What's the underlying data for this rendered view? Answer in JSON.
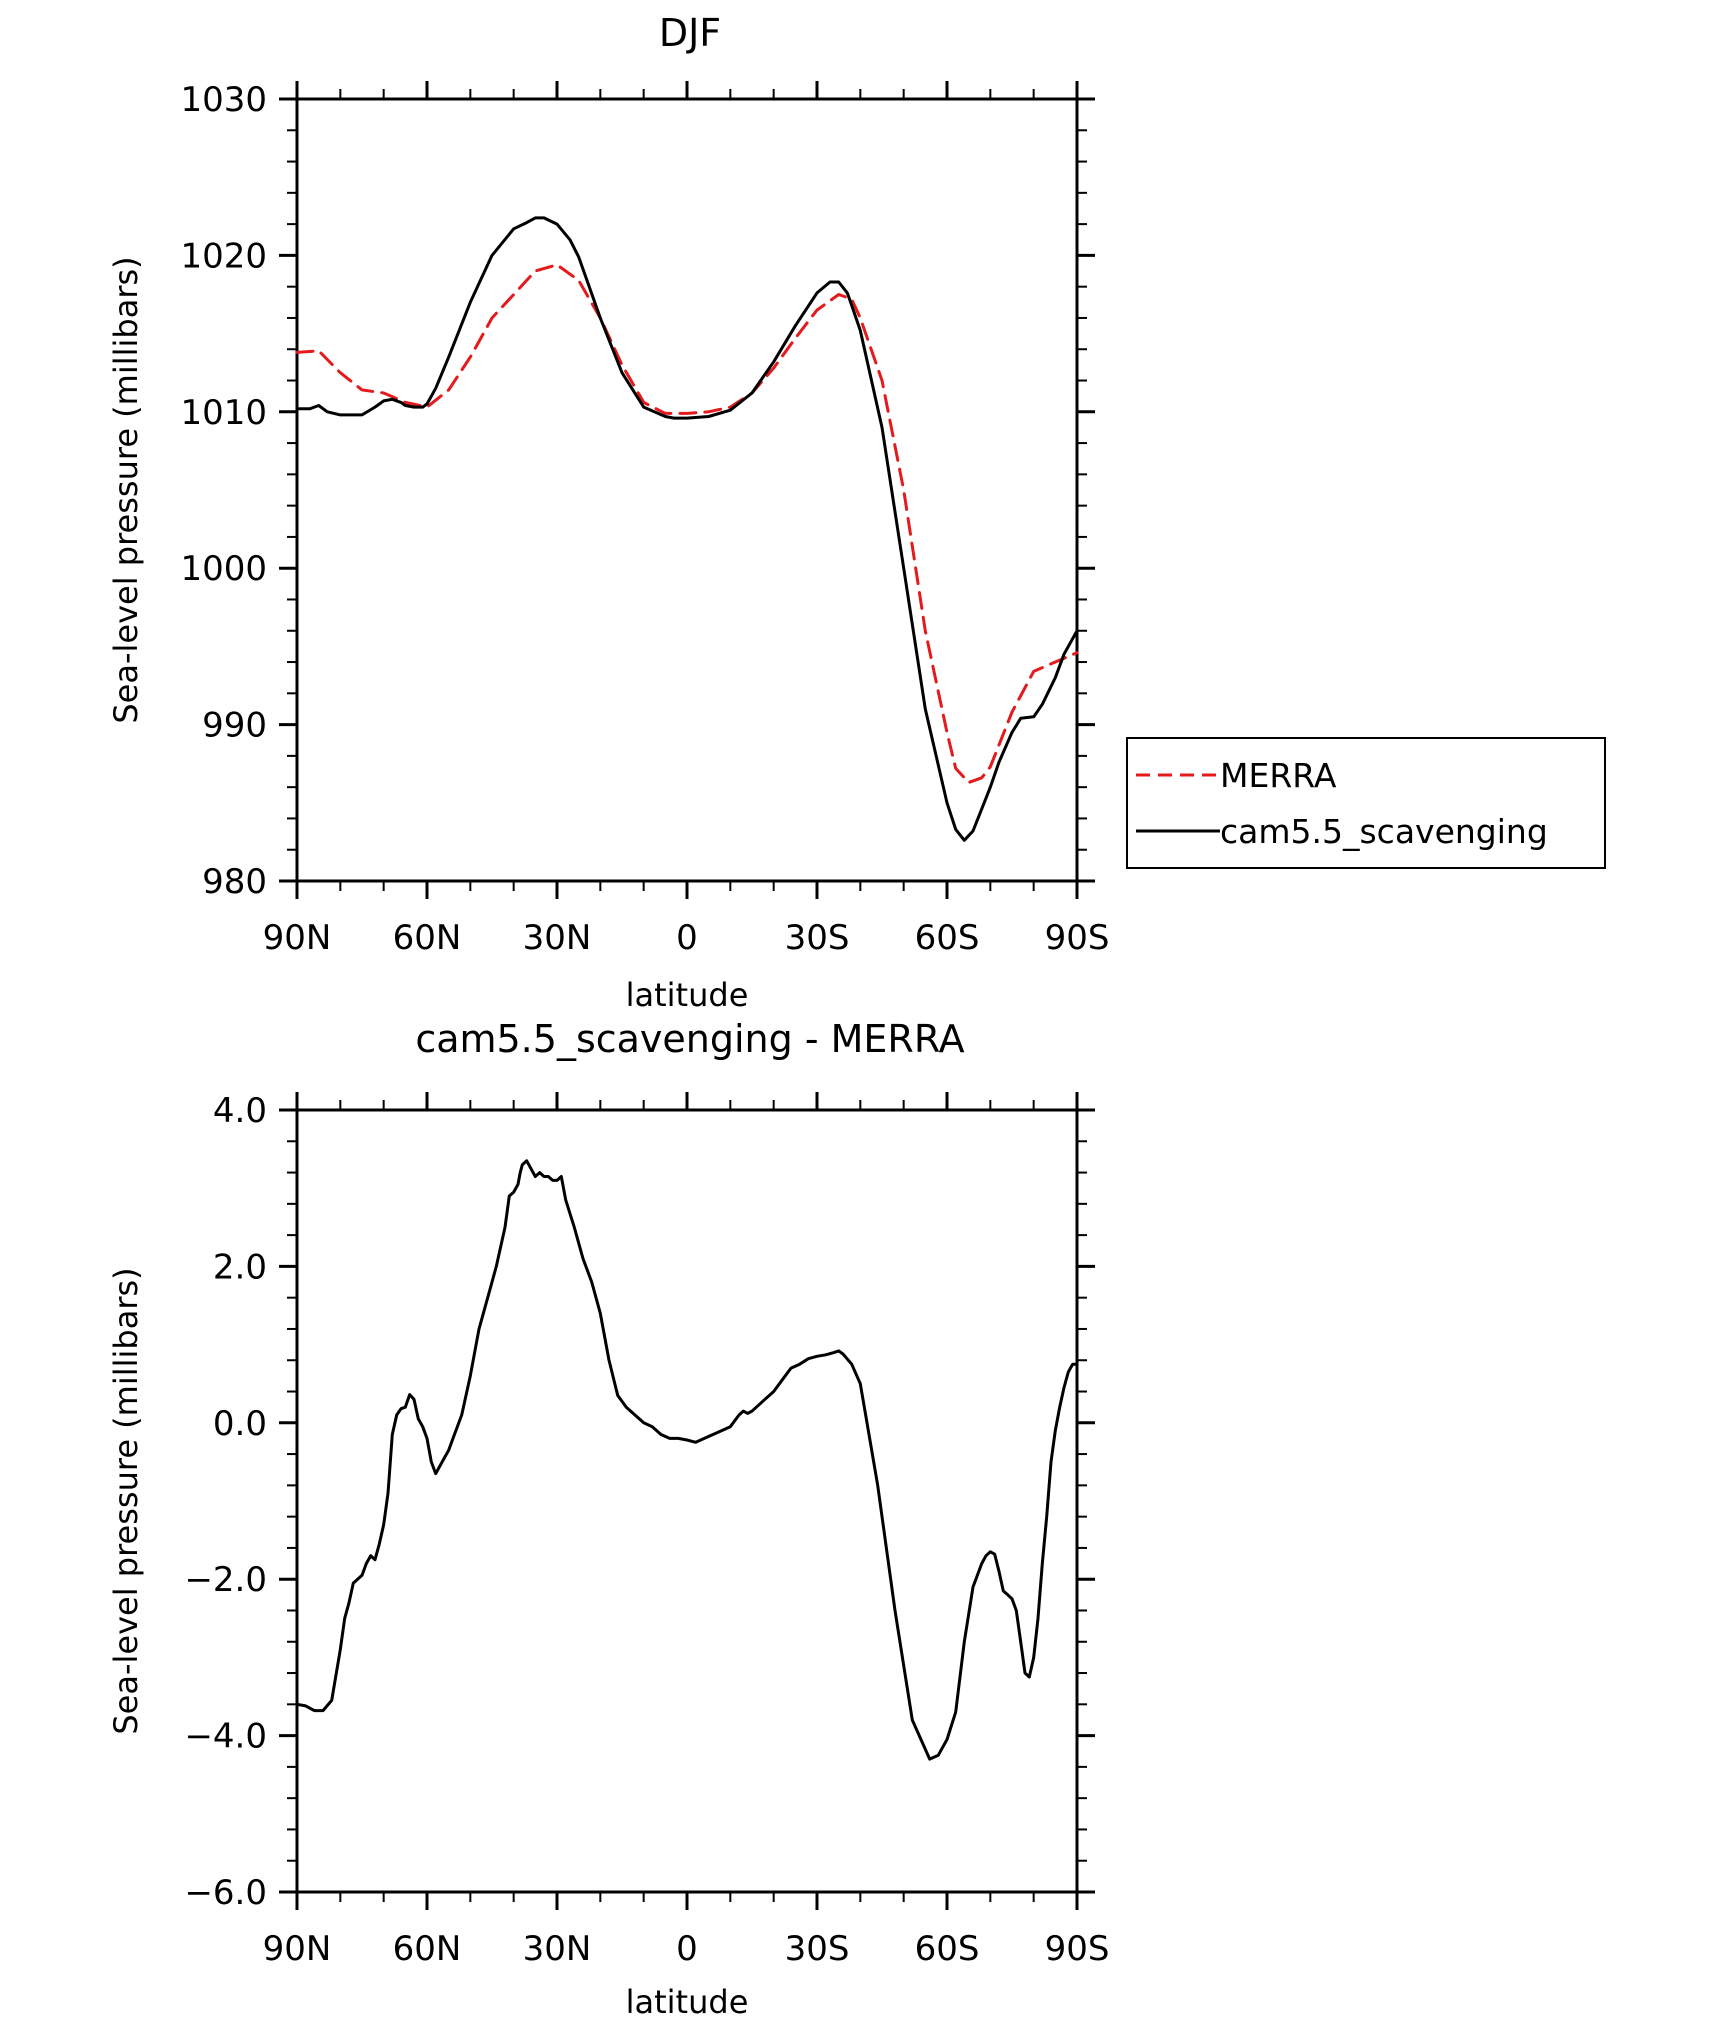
{
  "chart_data": [
    {
      "type": "line",
      "title": "DJF",
      "xlabel": "latitude",
      "ylabel": "Sea-level pressure (millibars)",
      "x_ticks": [
        "90N",
        "60N",
        "30N",
        "0",
        "30S",
        "60S",
        "90S"
      ],
      "y_ticks": [
        "980",
        "990",
        "1000",
        "1010",
        "1020",
        "1030"
      ],
      "ylim": [
        980,
        1030
      ],
      "xlim": [
        90,
        -90
      ],
      "legend_position": "right",
      "series": [
        {
          "name": "MERRA",
          "color": "#e41a1c",
          "dash": "dashed",
          "x": [
            90,
            85,
            80,
            75,
            70,
            65,
            60,
            55,
            50,
            45,
            40,
            35,
            30,
            25,
            20,
            15,
            10,
            5,
            0,
            -5,
            -10,
            -15,
            -20,
            -25,
            -30,
            -35,
            -38,
            -40,
            -45,
            -50,
            -55,
            -60,
            -62,
            -65,
            -68,
            -70,
            -75,
            -80,
            -85,
            -90
          ],
          "y": [
            1013.8,
            1013.9,
            1012.5,
            1011.4,
            1011.2,
            1010.6,
            1010.3,
            1011.4,
            1013.5,
            1016,
            1017.5,
            1019,
            1019.4,
            1018.4,
            1016,
            1013,
            1010.6,
            1009.9,
            1009.9,
            1010,
            1010.3,
            1011.2,
            1012.8,
            1014.7,
            1016.5,
            1017.5,
            1017.2,
            1016,
            1012,
            1005,
            996,
            989.5,
            987.2,
            986.3,
            986.6,
            987.3,
            990.8,
            993.4,
            994,
            994.6
          ]
        },
        {
          "name": "cam5.5_scavenging",
          "color": "#000000",
          "dash": "solid",
          "x": [
            90,
            87,
            85,
            83,
            80,
            75,
            72,
            70,
            68,
            66,
            65,
            63,
            61,
            60,
            58,
            55,
            50,
            45,
            40,
            37,
            35,
            33,
            30,
            27,
            25,
            20,
            15,
            10,
            5,
            3,
            0,
            -5,
            -10,
            -15,
            -20,
            -25,
            -30,
            -33,
            -35,
            -37,
            -38,
            -40,
            -45,
            -50,
            -55,
            -60,
            -62,
            -64,
            -66,
            -68,
            -70,
            -72,
            -75,
            -77,
            -80,
            -82,
            -85,
            -87,
            -90
          ],
          "y": [
            1010.2,
            1010.2,
            1010.4,
            1010,
            1009.8,
            1009.8,
            1010.3,
            1010.7,
            1010.8,
            1010.6,
            1010.4,
            1010.3,
            1010.3,
            1010.5,
            1011.5,
            1013.5,
            1017,
            1020,
            1021.7,
            1022.1,
            1022.4,
            1022.4,
            1022,
            1021,
            1019.9,
            1016,
            1012.5,
            1010.3,
            1009.7,
            1009.6,
            1009.6,
            1009.7,
            1010.1,
            1011.2,
            1013.2,
            1015.5,
            1017.6,
            1018.3,
            1018.3,
            1017.6,
            1016.8,
            1015.2,
            1009,
            1000,
            991,
            985,
            983.3,
            982.6,
            983.2,
            984.6,
            986,
            987.6,
            989.5,
            990.4,
            990.5,
            991.3,
            993,
            994.5,
            996
          ]
        }
      ]
    },
    {
      "type": "line",
      "title": "cam5.5_scavenging - MERRA",
      "xlabel": "latitude",
      "ylabel": "Sea-level pressure (millibars)",
      "x_ticks": [
        "90N",
        "60N",
        "30N",
        "0",
        "30S",
        "60S",
        "90S"
      ],
      "y_ticks": [
        "−6.0",
        "−4.0",
        "−2.0",
        "0.0",
        "2.0",
        "4.0"
      ],
      "ylim": [
        -6,
        4
      ],
      "xlim": [
        90,
        -90
      ],
      "series": [
        {
          "color": "#000000",
          "x": [
            90,
            88,
            86,
            84,
            82,
            80,
            79,
            78,
            77,
            75,
            74,
            73,
            72,
            71,
            70,
            69,
            68,
            67,
            66,
            65,
            64,
            63,
            62,
            61,
            60,
            59,
            58,
            57,
            56,
            55,
            54,
            52,
            50,
            48,
            46,
            44,
            42,
            41,
            40,
            39,
            38.5,
            38,
            37,
            36,
            35,
            34,
            33,
            32,
            31,
            30,
            29,
            28,
            26,
            24,
            22,
            20,
            18,
            16,
            14,
            12,
            10,
            8,
            6,
            4,
            2,
            0,
            -2,
            -4,
            -6,
            -8,
            -10,
            -12,
            -13,
            -14,
            -15,
            -16,
            -18,
            -20,
            -22,
            -24,
            -26,
            -28,
            -30,
            -32,
            -34,
            -35,
            -36,
            -38,
            -40,
            -44,
            -48,
            -52,
            -56,
            -58,
            -60,
            -62,
            -64,
            -66,
            -68,
            -69,
            -70,
            -71,
            -72,
            -73,
            -74,
            -75,
            -76,
            -77,
            -78,
            -79,
            -80,
            -81,
            -82,
            -83,
            -84,
            -85,
            -86,
            -87,
            -88,
            -89,
            -90
          ],
          "y": [
            -3.6,
            -3.62,
            -3.68,
            -3.68,
            -3.55,
            -2.9,
            -2.5,
            -2.3,
            -2.05,
            -1.95,
            -1.8,
            -1.7,
            -1.75,
            -1.55,
            -1.3,
            -0.9,
            -0.15,
            0.1,
            0.18,
            0.2,
            0.36,
            0.3,
            0.05,
            -0.05,
            -0.2,
            -0.5,
            -0.65,
            -0.55,
            -0.45,
            -0.35,
            -0.2,
            0.1,
            0.6,
            1.2,
            1.6,
            2.0,
            2.5,
            2.9,
            2.95,
            3.05,
            3.2,
            3.3,
            3.35,
            3.25,
            3.15,
            3.2,
            3.15,
            3.15,
            3.1,
            3.1,
            3.15,
            2.85,
            2.5,
            2.1,
            1.8,
            1.4,
            0.8,
            0.35,
            0.2,
            0.1,
            0.0,
            -0.05,
            -0.15,
            -0.2,
            -0.2,
            -0.22,
            -0.25,
            -0.2,
            -0.15,
            -0.1,
            -0.05,
            0.1,
            0.15,
            0.12,
            0.15,
            0.2,
            0.3,
            0.4,
            0.55,
            0.7,
            0.75,
            0.82,
            0.85,
            0.87,
            0.9,
            0.92,
            0.88,
            0.75,
            0.5,
            -0.8,
            -2.4,
            -3.8,
            -4.3,
            -4.25,
            -4.05,
            -3.7,
            -2.8,
            -2.1,
            -1.8,
            -1.7,
            -1.65,
            -1.68,
            -1.9,
            -2.15,
            -2.2,
            -2.25,
            -2.4,
            -2.8,
            -3.2,
            -3.25,
            -3.0,
            -2.5,
            -1.8,
            -1.2,
            -0.5,
            -0.1,
            0.2,
            0.45,
            0.65,
            0.75,
            0.75
          ]
        }
      ]
    }
  ]
}
